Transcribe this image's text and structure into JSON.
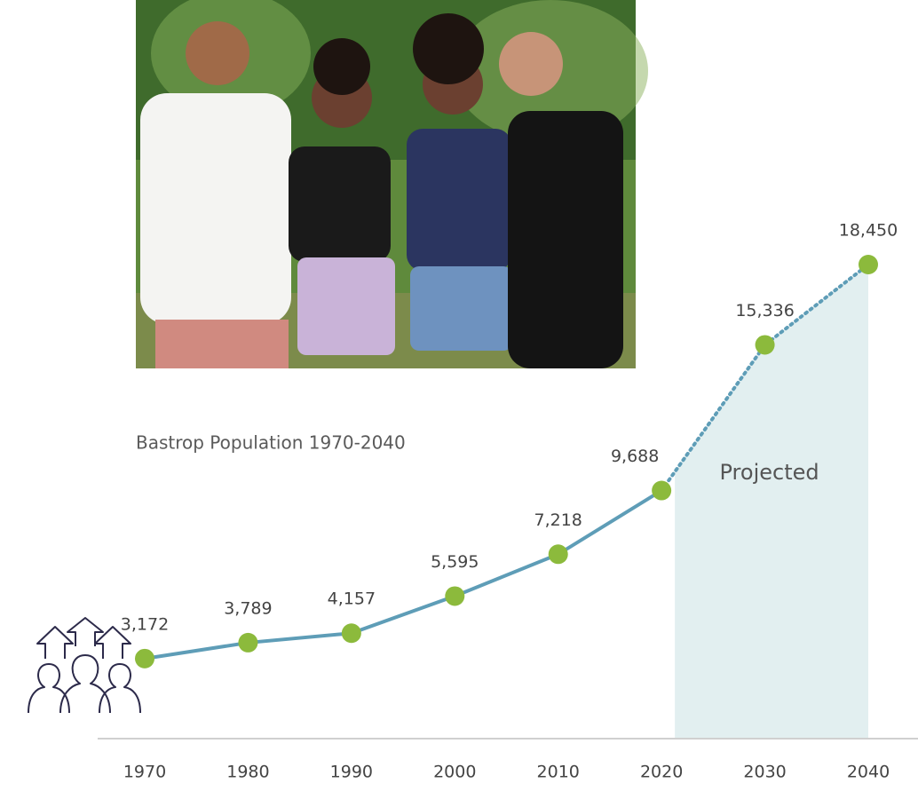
{
  "chart_data": {
    "type": "line",
    "title": "Bastrop Population 1970-2040",
    "categories": [
      "1970",
      "1980",
      "1990",
      "2000",
      "2010",
      "2020",
      "2030",
      "2040"
    ],
    "values": [
      3172,
      3789,
      4157,
      5595,
      7218,
      9688,
      15336,
      18450
    ],
    "value_labels": [
      "3,172",
      "3,789",
      "4,157",
      "5,595",
      "7,218",
      "9,688",
      "15,336",
      "18,450"
    ],
    "line_style": [
      "solid",
      "solid",
      "solid",
      "solid",
      "solid",
      "dotted",
      "dotted",
      "dotted"
    ],
    "line_color": "#5e9db7",
    "marker_color": "#8cba3c",
    "projection_label": "Projected",
    "projection_color": "#e2eff0"
  }
}
